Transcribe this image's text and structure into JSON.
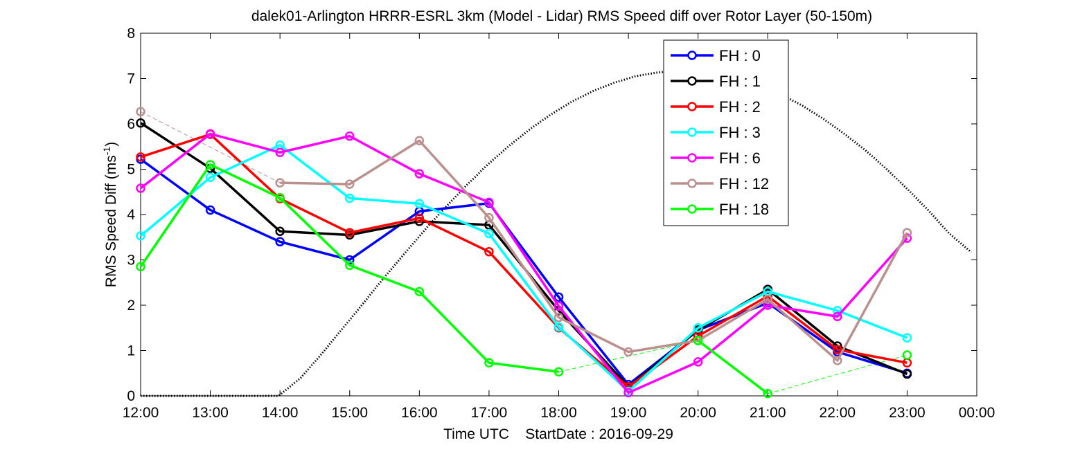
{
  "chart_data": {
    "type": "line",
    "title": "dalek01-Arlington HRRR-ESRL 3km (Model - Lidar) RMS Speed diff over Rotor Layer (50-150m)",
    "xlabel": "Time UTC    StartDate : 2016-09-29",
    "ylabel_main": "RMS Speed Diff (ms",
    "ylabel_sup": "-1",
    "ylabel_close": ")",
    "x_tick_labels": [
      "12:00",
      "13:00",
      "14:00",
      "15:00",
      "16:00",
      "17:00",
      "18:00",
      "19:00",
      "20:00",
      "21:00",
      "22:00",
      "23:00",
      "00:00"
    ],
    "x": [
      "12:00",
      "13:00",
      "14:00",
      "15:00",
      "16:00",
      "17:00",
      "18:00",
      "19:00",
      "20:00",
      "21:00",
      "22:00",
      "23:00"
    ],
    "ylim": [
      0,
      8
    ],
    "y_ticks": [
      0,
      1,
      2,
      3,
      4,
      5,
      6,
      7,
      8
    ],
    "grid": false,
    "legend_position": "top-right",
    "series": [
      {
        "name": "FH : 0",
        "color": "#0000ff",
        "values": [
          5.22,
          4.1,
          3.4,
          3.0,
          4.07,
          4.25,
          2.18,
          0.25,
          1.45,
          2.05,
          0.97,
          0.5
        ]
      },
      {
        "name": "FH : 1",
        "color": "#000000",
        "values": [
          6.02,
          5.02,
          3.63,
          3.55,
          3.85,
          3.77,
          1.88,
          0.2,
          1.45,
          2.35,
          1.1,
          0.48
        ]
      },
      {
        "name": "FH : 2",
        "color": "#ff0000",
        "values": [
          5.27,
          5.77,
          4.35,
          3.6,
          3.92,
          3.18,
          1.5,
          0.2,
          1.32,
          2.2,
          1.02,
          0.73
        ]
      },
      {
        "name": "FH : 3",
        "color": "#00ffff",
        "values": [
          3.53,
          4.82,
          5.53,
          4.36,
          4.24,
          3.58,
          1.52,
          0.1,
          1.5,
          2.3,
          1.88,
          1.28
        ]
      },
      {
        "name": "FH : 6",
        "color": "#ff00ff",
        "values": [
          4.58,
          5.78,
          5.37,
          5.73,
          4.9,
          4.27,
          1.98,
          0.07,
          0.75,
          2.0,
          1.75,
          3.48
        ]
      },
      {
        "name": "FH : 12",
        "color": "#bc8f8f",
        "values": [
          6.27,
          null,
          4.7,
          4.67,
          5.63,
          3.93,
          1.73,
          0.97,
          1.22,
          2.13,
          0.78,
          3.6
        ]
      },
      {
        "name": "FH : 18",
        "color": "#00ff00",
        "values": [
          2.85,
          5.1,
          4.37,
          2.88,
          2.3,
          0.73,
          0.53,
          null,
          1.22,
          0.05,
          null,
          0.9
        ]
      }
    ],
    "solar_elevation_curve": {
      "style": "dotted",
      "x_hours": [
        12.0,
        13.0,
        13.98,
        14.3,
        14.6,
        14.9,
        15.2,
        15.5,
        15.8,
        16.1,
        16.4,
        16.7,
        17.0,
        17.3,
        17.6,
        17.9,
        18.2,
        18.5,
        18.8,
        19.1,
        19.4,
        19.7,
        20.0,
        20.3,
        20.6,
        20.9,
        21.2,
        21.5,
        21.8,
        22.1,
        22.4,
        22.7,
        23.0,
        23.3,
        23.6,
        23.92
      ],
      "values": [
        0.0,
        0.0,
        0.0,
        0.4,
        0.93,
        1.49,
        2.05,
        2.62,
        3.16,
        3.7,
        4.2,
        4.68,
        5.13,
        5.53,
        5.9,
        6.22,
        6.5,
        6.73,
        6.91,
        7.05,
        7.13,
        7.17,
        7.16,
        7.1,
        6.99,
        6.84,
        6.64,
        6.4,
        6.11,
        5.78,
        5.42,
        5.01,
        4.57,
        4.1,
        3.59,
        3.17
      ]
    }
  }
}
